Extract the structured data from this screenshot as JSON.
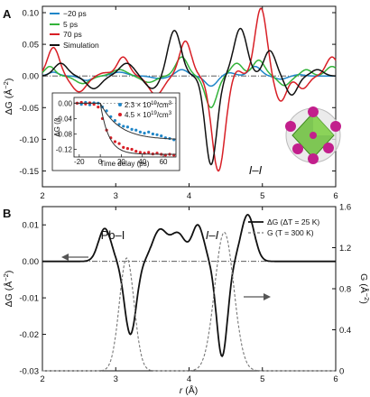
{
  "chart_data": [
    {
      "panel": "A",
      "type": "line",
      "xlim": [
        2,
        6
      ],
      "ylim": [
        -0.175,
        0.11
      ],
      "x_ticks": [
        "2",
        "3",
        "4",
        "5",
        "6"
      ],
      "y_ticks": [
        "0.10",
        "0.05",
        "0.00",
        "-0.05",
        "-0.10",
        "-0.15"
      ],
      "ylabel": "ΔG (Å⁻²)",
      "ylabel_parts": [
        "ΔG (Å",
        "−2",
        ")"
      ],
      "legend_position": "top-left",
      "annotation": "I–I",
      "zero_line": true,
      "series": [
        {
          "name": "−20 ps",
          "color": "#1f86c8",
          "peaks": [
            [
              2.15,
              0.006,
              0.07
            ],
            [
              2.6,
              -0.007,
              0.08
            ],
            [
              3.05,
              0.006,
              0.1
            ],
            [
              3.6,
              -0.004,
              0.1
            ],
            [
              3.9,
              0.01,
              0.08
            ],
            [
              4.3,
              -0.016,
              0.08
            ],
            [
              4.55,
              0.005,
              0.08
            ],
            [
              4.9,
              0.015,
              0.08
            ],
            [
              5.25,
              -0.005,
              0.08
            ],
            [
              5.5,
              0.002,
              0.07
            ]
          ],
          "amp_scale": 1
        },
        {
          "name": "5 ps",
          "color": "#33b33a",
          "peaks": [
            [
              2.1,
              0.015,
              0.07
            ],
            [
              2.55,
              -0.012,
              0.1
            ],
            [
              3.05,
              0.01,
              0.1
            ],
            [
              3.45,
              -0.01,
              0.1
            ],
            [
              3.9,
              0.03,
              0.08
            ],
            [
              4.3,
              -0.05,
              0.08
            ],
            [
              4.65,
              0.02,
              0.08
            ],
            [
              4.95,
              0.025,
              0.08
            ],
            [
              5.3,
              -0.015,
              0.08
            ],
            [
              5.6,
              0.01,
              0.07
            ],
            [
              5.95,
              0.015,
              0.08
            ]
          ],
          "amp_scale": 1
        },
        {
          "name": "70 ps",
          "color": "#d81f26",
          "peaks": [
            [
              2.15,
              0.045,
              0.08
            ],
            [
              2.5,
              -0.025,
              0.1
            ],
            [
              2.85,
              0.005,
              0.08
            ],
            [
              3.1,
              0.03,
              0.08
            ],
            [
              3.55,
              -0.03,
              0.1
            ],
            [
              3.95,
              0.055,
              0.08
            ],
            [
              4.4,
              -0.15,
              0.09
            ],
            [
              4.65,
              0.01,
              0.06
            ],
            [
              4.98,
              0.107,
              0.08
            ],
            [
              5.25,
              -0.04,
              0.08
            ],
            [
              5.55,
              -0.02,
              0.08
            ],
            [
              5.95,
              0.03,
              0.08
            ]
          ],
          "amp_scale": 1
        },
        {
          "name": "Simulation",
          "color": "#111111",
          "peaks": [
            [
              2.25,
              0.02,
              0.09
            ],
            [
              2.7,
              -0.02,
              0.1
            ],
            [
              3.15,
              0.02,
              0.1
            ],
            [
              3.5,
              -0.02,
              0.1
            ],
            [
              3.8,
              0.072,
              0.09
            ],
            [
              4.3,
              -0.14,
              0.08
            ],
            [
              4.7,
              0.075,
              0.09
            ],
            [
              5.1,
              0.04,
              0.08
            ],
            [
              5.4,
              -0.03,
              0.08
            ],
            [
              5.75,
              0.01,
              0.08
            ]
          ],
          "amp_scale": 1
        }
      ],
      "inset": {
        "type": "scatter",
        "xlabel": "Time delay (ps)",
        "ylabel": "ΔG (I)",
        "ylabel_parts": [
          "ΔG (",
          "I",
          ")"
        ],
        "xlim": [
          -25,
          72
        ],
        "ylim": [
          -0.14,
          0.015
        ],
        "x_ticks": [
          "-20",
          "0",
          "20",
          "40",
          "60"
        ],
        "y_ticks": [
          "0.00",
          "-0.04",
          "-0.08",
          "-0.12"
        ],
        "series": [
          {
            "name": "2.3 × 10^19/cm^3",
            "name_parts": [
              "2.3 × 10",
              "19",
              "/cm",
              "3"
            ],
            "color": "#1f86c8",
            "x": [
              -22,
              -18,
              -14,
              -10,
              -6,
              -2,
              2,
              6,
              10,
              14,
              18,
              22,
              26,
              30,
              34,
              38,
              42,
              46,
              50,
              54,
              58,
              62,
              66,
              70
            ],
            "y": [
              0.0,
              -0.003,
              0.002,
              -0.004,
              0.001,
              0.0,
              -0.01,
              -0.02,
              -0.035,
              -0.045,
              -0.055,
              -0.06,
              -0.062,
              -0.068,
              -0.07,
              -0.075,
              -0.078,
              -0.075,
              -0.08,
              -0.082,
              -0.085,
              -0.09,
              -0.092,
              -0.095
            ],
            "fit_tau": 18,
            "fit_amp": -0.095
          },
          {
            "name": "4.5 × 10^19/cm^3",
            "name_parts": [
              "4.5 × 10",
              "19",
              "/cm",
              "3"
            ],
            "color": "#d81f26",
            "x": [
              -22,
              -18,
              -14,
              -10,
              -6,
              -2,
              2,
              6,
              10,
              14,
              18,
              22,
              26,
              30,
              34,
              38,
              42,
              46,
              50,
              54,
              58,
              62,
              66,
              70
            ],
            "y": [
              0.0,
              0.002,
              -0.002,
              0.001,
              -0.003,
              -0.01,
              -0.04,
              -0.07,
              -0.09,
              -0.1,
              -0.105,
              -0.115,
              -0.118,
              -0.12,
              -0.125,
              -0.128,
              -0.13,
              -0.128,
              -0.132,
              -0.13,
              -0.133,
              -0.135,
              -0.133,
              -0.135
            ],
            "fit_tau": 8,
            "fit_amp": -0.133
          }
        ]
      }
    },
    {
      "panel": "B",
      "type": "line",
      "xlim": [
        2,
        6
      ],
      "xlabel": "r (Å)",
      "xlabel_parts": [
        "r",
        " (Å)"
      ],
      "ylim_left": [
        -0.03,
        0.015
      ],
      "ylim_right": [
        0,
        1.6
      ],
      "x_ticks": [
        "2",
        "3",
        "4",
        "5",
        "6"
      ],
      "y_ticks_left": [
        "0.01",
        "0.00",
        "-0.01",
        "-0.02",
        "-0.03"
      ],
      "y_ticks_right": [
        "1.6",
        "1.2",
        "0.8",
        "0.4",
        "0"
      ],
      "ylabel_left": "ΔG (Å⁻²)",
      "ylabel_left_parts": [
        "ΔG (Å",
        "−2",
        ")"
      ],
      "ylabel_right": "G (Å⁻²)",
      "ylabel_right_parts": [
        "G (Å",
        "−2",
        ")"
      ],
      "annotations": [
        "Pb–I",
        "I–I"
      ],
      "legend_position": "top-right",
      "series": [
        {
          "name": "ΔG (ΔT = 25 K)",
          "name_parts": [
            "ΔG (ΔT = 25 K)"
          ],
          "color": "#111111",
          "style": "solid",
          "axis": "left",
          "peaks": [
            [
              2.85,
              0.009,
              0.085
            ],
            [
              3.2,
              -0.02,
              0.08
            ],
            [
              3.6,
              0.0085,
              0.1
            ],
            [
              3.85,
              0.0075,
              0.1
            ],
            [
              4.12,
              0.0098,
              0.08
            ],
            [
              4.45,
              -0.026,
              0.075
            ],
            [
              4.8,
              0.0128,
              0.09
            ]
          ]
        },
        {
          "name": "G (T = 300 K)",
          "name_parts": [
            "G (T = 300 K)"
          ],
          "color": "#777777",
          "style": "dashed",
          "axis": "right",
          "peaks": [
            [
              3.15,
              1.1,
              0.1
            ],
            [
              4.48,
              1.35,
              0.13
            ]
          ]
        }
      ]
    }
  ]
}
